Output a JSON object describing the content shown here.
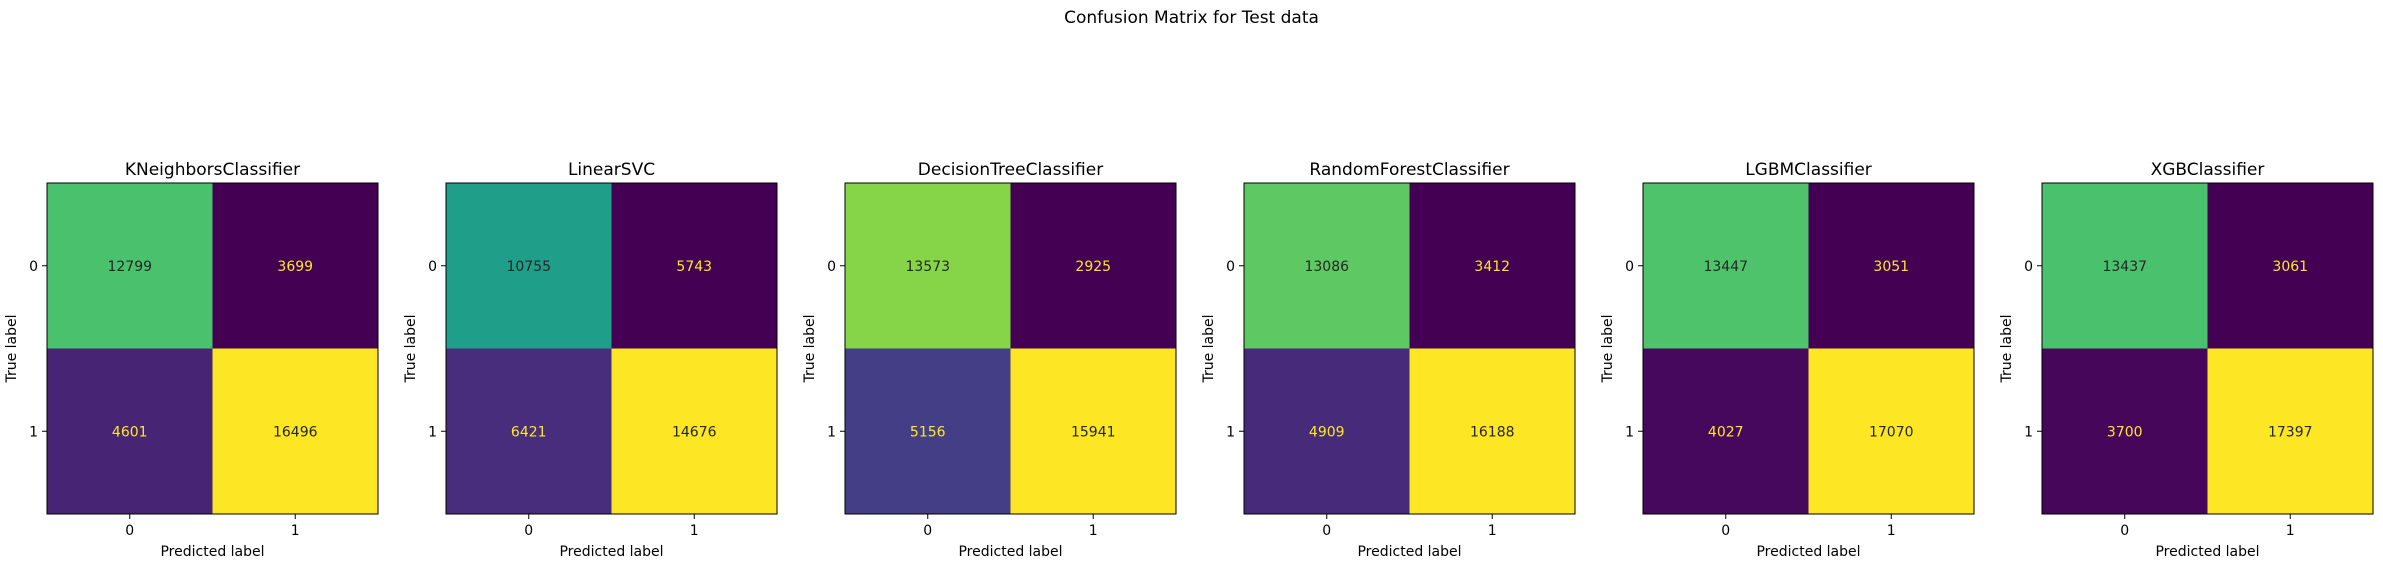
{
  "suptitle": "Confusion Matrix for Test data",
  "chart_data": [
    {
      "type": "heatmap",
      "title": "KNeighborsClassifier",
      "xlabel": "Predicted label",
      "ylabel": "True label",
      "x_ticks": [
        "0",
        "1"
      ],
      "y_ticks": [
        "0",
        "1"
      ],
      "matrix": [
        [
          12799,
          3699
        ],
        [
          4601,
          16496
        ]
      ],
      "cell_colors": [
        "#4ac16d",
        "#440154",
        "#482475",
        "#fde725"
      ],
      "text_colors": [
        "#262626",
        "#fde725",
        "#fde725",
        "#262626"
      ]
    },
    {
      "type": "heatmap",
      "title": "LinearSVC",
      "xlabel": "Predicted label",
      "ylabel": "True label",
      "x_ticks": [
        "0",
        "1"
      ],
      "y_ticks": [
        "0",
        "1"
      ],
      "matrix": [
        [
          10755,
          5743
        ],
        [
          6421,
          14676
        ]
      ],
      "cell_colors": [
        "#1f9e89",
        "#440154",
        "#472d7b",
        "#fde725"
      ],
      "text_colors": [
        "#262626",
        "#fde725",
        "#fde725",
        "#262626"
      ]
    },
    {
      "type": "heatmap",
      "title": "DecisionTreeClassifier",
      "xlabel": "Predicted label",
      "ylabel": "True label",
      "x_ticks": [
        "0",
        "1"
      ],
      "y_ticks": [
        "0",
        "1"
      ],
      "matrix": [
        [
          13573,
          2925
        ],
        [
          5156,
          15941
        ]
      ],
      "cell_colors": [
        "#86d549",
        "#440154",
        "#433e85",
        "#fde725"
      ],
      "text_colors": [
        "#262626",
        "#fde725",
        "#fde725",
        "#262626"
      ]
    },
    {
      "type": "heatmap",
      "title": "RandomForestClassifier",
      "xlabel": "Predicted label",
      "ylabel": "True label",
      "x_ticks": [
        "0",
        "1"
      ],
      "y_ticks": [
        "0",
        "1"
      ],
      "matrix": [
        [
          13086,
          3412
        ],
        [
          4909,
          16188
        ]
      ],
      "cell_colors": [
        "#5ec962",
        "#440154",
        "#472a7a",
        "#fde725"
      ],
      "text_colors": [
        "#262626",
        "#fde725",
        "#fde725",
        "#262626"
      ]
    },
    {
      "type": "heatmap",
      "title": "LGBMClassifier",
      "xlabel": "Predicted label",
      "ylabel": "True label",
      "x_ticks": [
        "0",
        "1"
      ],
      "y_ticks": [
        "0",
        "1"
      ],
      "matrix": [
        [
          13447,
          3051
        ],
        [
          4027,
          17070
        ]
      ],
      "cell_colors": [
        "#4ec36b",
        "#440154",
        "#46085c",
        "#fde725"
      ],
      "text_colors": [
        "#262626",
        "#fde725",
        "#fde725",
        "#262626"
      ]
    },
    {
      "type": "heatmap",
      "title": "XGBClassifier",
      "xlabel": "Predicted label",
      "ylabel": "True label",
      "x_ticks": [
        "0",
        "1"
      ],
      "y_ticks": [
        "0",
        "1"
      ],
      "matrix": [
        [
          13437,
          3061
        ],
        [
          3700,
          17397
        ]
      ],
      "cell_colors": [
        "#4ac16d",
        "#440154",
        "#46075a",
        "#fde725"
      ],
      "text_colors": [
        "#262626",
        "#fde725",
        "#fde725",
        "#262626"
      ]
    }
  ]
}
